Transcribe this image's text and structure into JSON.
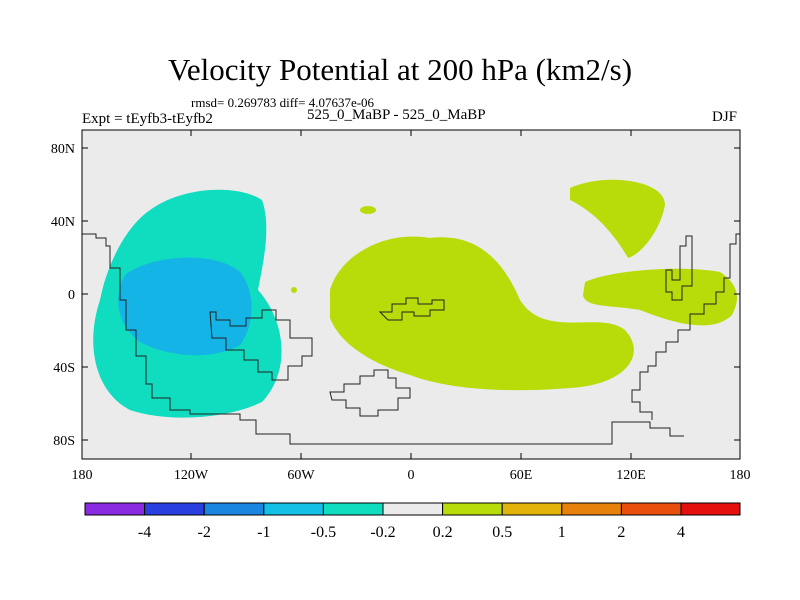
{
  "title": "Velocity Potential at 200 hPa (km2/s)",
  "stats": "rmsd= 0.269783 diff= 4.07637e-06",
  "left_label": "Expt = tEyfb3-tEyfb2",
  "center_label": "525_0_MaBP - 525_0_MaBP",
  "right_label": "DJF",
  "lat_labels": [
    "80N",
    "40N",
    "0",
    "40S",
    "80S"
  ],
  "lon_labels": [
    "180",
    "120W",
    "60W",
    "0",
    "60E",
    "120E",
    "180"
  ],
  "colorbar": {
    "colors": [
      "#8a2be2",
      "#2a3fe0",
      "#1a86e0",
      "#14c0e6",
      "#10dcc0",
      "#ebebeb",
      "#b7dc0a",
      "#e2b409",
      "#e6820c",
      "#e84e0c",
      "#e4100e"
    ],
    "labels": [
      "-4",
      "-2",
      "-1",
      "-0.5",
      "-0.2",
      "0.2",
      "0.5",
      "1",
      "2",
      "4"
    ]
  },
  "colors": {
    "background": "#ebebeb",
    "level_neg_0_2": "#10dcc0",
    "level_neg_0_5": "#14b4e6",
    "level_pos_0_2": "#b7dc0a"
  }
}
